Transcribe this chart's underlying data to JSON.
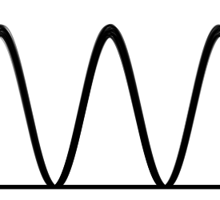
{
  "background_color": "#ffffff",
  "line_color": "#000000",
  "line_alpha_main": 0.5,
  "line_alpha_zero": 0.45,
  "line_alpha_base": 0.85,
  "line_width": 1.2,
  "n_traces": 20,
  "figsize": [
    2.75,
    2.5
  ],
  "dpi": 100
}
